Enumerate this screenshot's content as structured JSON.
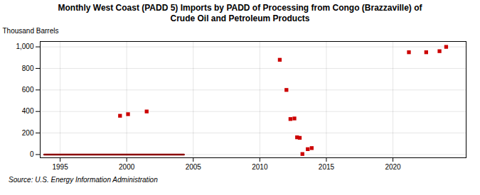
{
  "chart_data": {
    "type": "scatter",
    "title": "Monthly West Coast (PADD 5) Imports by PADD of Processing from Congo (Brazzaville) of\nCrude Oil and Petroleum Products",
    "ylabel": "Thousand Barrels",
    "source": "Source: U.S. Energy Information Administration",
    "xlim": [
      1993.5,
      2025.5
    ],
    "ylim": [
      -30,
      1050
    ],
    "xticks": [
      1995,
      2000,
      2005,
      2010,
      2015,
      2020
    ],
    "yticks": [
      0,
      200,
      400,
      600,
      800,
      {
        "value": 1000,
        "label": "1,000"
      }
    ],
    "grid": true,
    "series": [
      {
        "type": "line",
        "color": "#8b0000",
        "x": [
          1993.8,
          2004.3
        ],
        "values": [
          0,
          0
        ]
      },
      {
        "type": "scatter",
        "color": "#cc0000",
        "marker": "square",
        "x": [
          1999.5,
          2000.1,
          2001.5,
          2011.5,
          2012.0,
          2012.3,
          2012.6,
          2012.8,
          2013.0,
          2013.2,
          2013.6,
          2013.9,
          2021.2,
          2022.5,
          2023.5,
          2024.0
        ],
        "values": [
          360,
          375,
          400,
          880,
          600,
          330,
          335,
          160,
          155,
          5,
          50,
          60,
          950,
          950,
          960,
          1000
        ]
      }
    ]
  }
}
